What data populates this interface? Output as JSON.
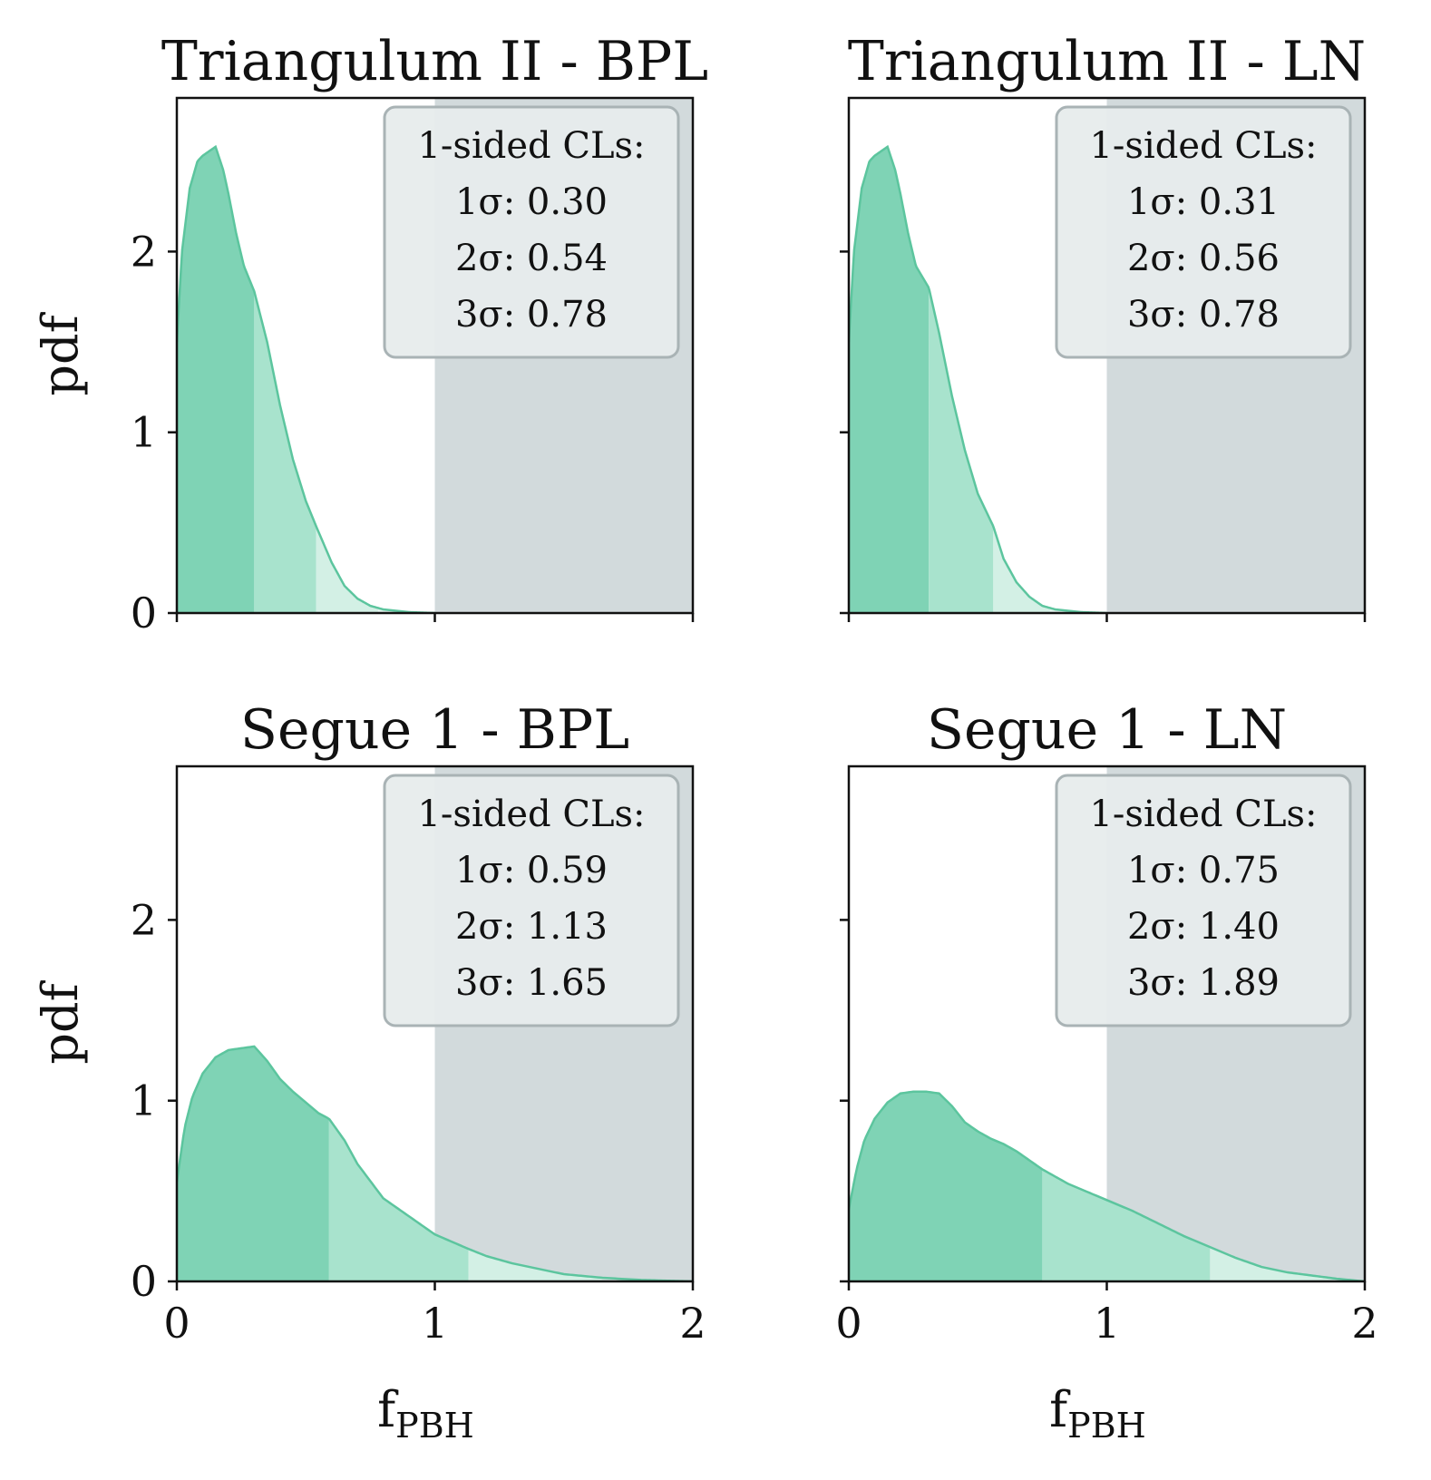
{
  "chart_data": [
    {
      "type": "area",
      "title": "Triangulum II - BPL",
      "xlabel": "",
      "ylabel": "pdf",
      "xlim": [
        0,
        2
      ],
      "ylim": [
        0,
        2.85
      ],
      "xticks": [
        "0",
        "1",
        "2"
      ],
      "yticks": [
        "0",
        "1",
        "2"
      ],
      "show_xticklabels": false,
      "show_yticklabels": true,
      "excluded_region": [
        1,
        2
      ],
      "legend": {
        "title": "1-sided CLs:",
        "entries": [
          "1σ: 0.30",
          "2σ: 0.54",
          "3σ: 0.78"
        ],
        "placement": "upper right"
      },
      "confidence_limits": {
        "1sigma": 0.3,
        "2sigma": 0.54,
        "3sigma": 0.78
      },
      "series": [
        {
          "x": [
            0,
            0.02,
            0.05,
            0.08,
            0.1,
            0.12,
            0.15,
            0.18,
            0.2,
            0.23,
            0.26,
            0.3,
            0.35,
            0.4,
            0.45,
            0.5,
            0.54,
            0.6,
            0.65,
            0.7,
            0.75,
            0.8,
            0.9,
            1.0
          ],
          "y": [
            1.5,
            2.0,
            2.35,
            2.5,
            2.53,
            2.55,
            2.58,
            2.45,
            2.32,
            2.1,
            1.92,
            1.78,
            1.5,
            1.15,
            0.85,
            0.62,
            0.48,
            0.28,
            0.15,
            0.08,
            0.04,
            0.02,
            0.005,
            0
          ]
        }
      ]
    },
    {
      "type": "area",
      "title": "Triangulum II - LN",
      "xlabel": "",
      "ylabel": "",
      "xlim": [
        0,
        2
      ],
      "ylim": [
        0,
        2.85
      ],
      "xticks": [
        "0",
        "1",
        "2"
      ],
      "yticks": [
        "0",
        "1",
        "2"
      ],
      "show_xticklabels": false,
      "show_yticklabels": false,
      "excluded_region": [
        1,
        2
      ],
      "legend": {
        "title": "1-sided CLs:",
        "entries": [
          "1σ: 0.31",
          "2σ: 0.56",
          "3σ: 0.78"
        ],
        "placement": "upper right"
      },
      "confidence_limits": {
        "1sigma": 0.31,
        "2sigma": 0.56,
        "3sigma": 0.78
      },
      "series": [
        {
          "x": [
            0,
            0.02,
            0.05,
            0.08,
            0.1,
            0.12,
            0.15,
            0.18,
            0.2,
            0.23,
            0.26,
            0.31,
            0.35,
            0.4,
            0.45,
            0.5,
            0.56,
            0.6,
            0.65,
            0.7,
            0.75,
            0.8,
            0.9,
            1.0
          ],
          "y": [
            1.5,
            2.0,
            2.35,
            2.5,
            2.53,
            2.55,
            2.58,
            2.45,
            2.32,
            2.1,
            1.92,
            1.8,
            1.55,
            1.2,
            0.9,
            0.66,
            0.48,
            0.3,
            0.17,
            0.09,
            0.04,
            0.02,
            0.005,
            0
          ]
        }
      ]
    },
    {
      "type": "area",
      "title": "Segue 1 - BPL",
      "xlabel": "fPBH",
      "ylabel": "pdf",
      "xlim": [
        0,
        2
      ],
      "ylim": [
        0,
        2.85
      ],
      "xticks": [
        "0",
        "1",
        "2"
      ],
      "yticks": [
        "0",
        "1",
        "2"
      ],
      "show_xticklabels": true,
      "show_yticklabels": true,
      "excluded_region": [
        1,
        2
      ],
      "legend": {
        "title": "1-sided CLs:",
        "entries": [
          "1σ: 0.59",
          "2σ: 1.13",
          "3σ: 1.65"
        ],
        "placement": "upper right"
      },
      "confidence_limits": {
        "1sigma": 0.59,
        "2sigma": 1.13,
        "3sigma": 1.65
      },
      "series": [
        {
          "x": [
            0,
            0.03,
            0.06,
            0.1,
            0.15,
            0.2,
            0.25,
            0.3,
            0.35,
            0.4,
            0.45,
            0.5,
            0.55,
            0.59,
            0.65,
            0.7,
            0.8,
            0.9,
            1.0,
            1.13,
            1.2,
            1.3,
            1.4,
            1.5,
            1.65,
            1.8,
            2.0
          ],
          "y": [
            0.55,
            0.85,
            1.02,
            1.15,
            1.24,
            1.28,
            1.29,
            1.3,
            1.22,
            1.12,
            1.05,
            0.99,
            0.93,
            0.9,
            0.78,
            0.65,
            0.46,
            0.36,
            0.26,
            0.18,
            0.14,
            0.1,
            0.07,
            0.04,
            0.02,
            0.008,
            0
          ]
        }
      ]
    },
    {
      "type": "area",
      "title": "Segue 1 - LN",
      "xlabel": "fPBH",
      "ylabel": "",
      "xlim": [
        0,
        2
      ],
      "ylim": [
        0,
        2.85
      ],
      "xticks": [
        "0",
        "1",
        "2"
      ],
      "yticks": [
        "0",
        "1",
        "2"
      ],
      "show_xticklabels": true,
      "show_yticklabels": false,
      "excluded_region": [
        1,
        2
      ],
      "legend": {
        "title": "1-sided CLs:",
        "entries": [
          "1σ: 0.75",
          "2σ: 1.40",
          "3σ: 1.89"
        ],
        "placement": "upper right"
      },
      "confidence_limits": {
        "1sigma": 0.75,
        "2sigma": 1.4,
        "3sigma": 1.89
      },
      "series": [
        {
          "x": [
            0,
            0.03,
            0.06,
            0.1,
            0.15,
            0.2,
            0.25,
            0.3,
            0.35,
            0.4,
            0.45,
            0.5,
            0.55,
            0.6,
            0.65,
            0.75,
            0.85,
            1.0,
            1.1,
            1.2,
            1.3,
            1.4,
            1.5,
            1.6,
            1.7,
            1.89,
            2.0
          ],
          "y": [
            0.4,
            0.62,
            0.78,
            0.9,
            0.99,
            1.04,
            1.05,
            1.05,
            1.04,
            0.97,
            0.88,
            0.83,
            0.79,
            0.76,
            0.72,
            0.62,
            0.54,
            0.45,
            0.39,
            0.32,
            0.25,
            0.19,
            0.13,
            0.08,
            0.05,
            0.015,
            0
          ]
        }
      ]
    }
  ],
  "colors": {
    "sigma1_fill": "#7fd3b5",
    "sigma2_fill": "#a8e3cd",
    "sigma3_fill": "#d3f0e5",
    "curve_line": "#5cc59e",
    "excluded_fill": "#d2dadc",
    "legend_bg": "#e7ecec",
    "legend_border": "#a9b3b5",
    "axis": "#111111"
  }
}
